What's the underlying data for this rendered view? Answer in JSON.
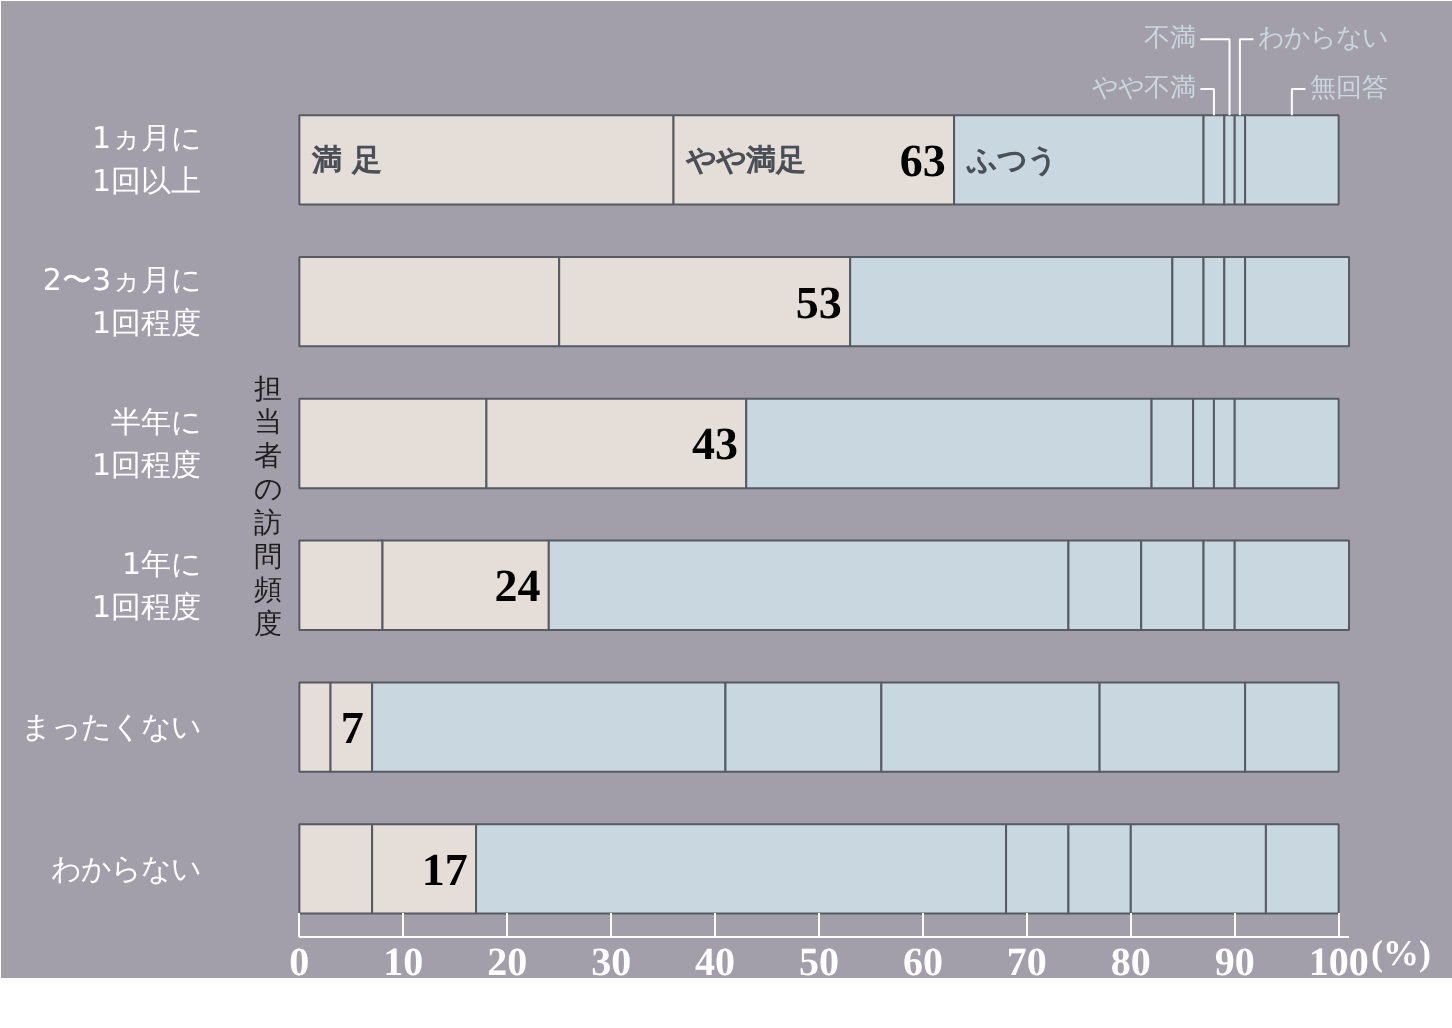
{
  "chart_data": {
    "type": "bar",
    "orientation": "horizontal",
    "stacked": true,
    "categories": [
      "1ヵ月に\n1回以上",
      "2〜3ヵ月に\n1回程度",
      "半年に\n1回程度",
      "1年に\n1回程度",
      "まったくない",
      "わからない"
    ],
    "series": [
      {
        "name": "満 足",
        "color": "#e5ddd8",
        "values": [
          36,
          25,
          18,
          8,
          3,
          7
        ]
      },
      {
        "name": "やや満足",
        "color": "#e5ddd8",
        "values": [
          27,
          28,
          25,
          16,
          4,
          10
        ]
      },
      {
        "name": "ふつう",
        "color": "#c9d7e0",
        "values": [
          24,
          31,
          39,
          50,
          34,
          51
        ]
      },
      {
        "name": "やや不満",
        "color": "#c9d7e0",
        "values": [
          2,
          3,
          4,
          7,
          15,
          6
        ]
      },
      {
        "name": "不満",
        "color": "#c9d7e0",
        "values": [
          1,
          2,
          2,
          6,
          21,
          6
        ]
      },
      {
        "name": "わからない",
        "color": "#c9d7e0",
        "values": [
          1,
          2,
          2,
          3,
          14,
          13
        ]
      },
      {
        "name": "無回答",
        "color": "#c9d7e0",
        "values": [
          9,
          10,
          10,
          11,
          9,
          7
        ]
      }
    ],
    "xlim": [
      0,
      101
    ],
    "xticks": [
      0,
      10,
      20,
      30,
      40,
      50,
      60,
      70,
      80,
      90,
      100
    ],
    "xlabel": "(%)",
    "ylabel": "担当者の訪問頻度",
    "annotations": [
      {
        "text": "63",
        "x": 63,
        "y": "1ヵ月に\n1回以上"
      },
      {
        "text": "53",
        "x": 53,
        "y": "2〜3ヵ月に\n1回程度"
      },
      {
        "text": "43",
        "x": 43,
        "y": "半年に\n1回程度"
      },
      {
        "text": "24",
        "x": 24,
        "y": "1年に\n1回程度"
      },
      {
        "text": "7",
        "x": 7,
        "y": "まったくない"
      },
      {
        "text": "17",
        "x": 17,
        "y": "わからない"
      }
    ]
  }
}
